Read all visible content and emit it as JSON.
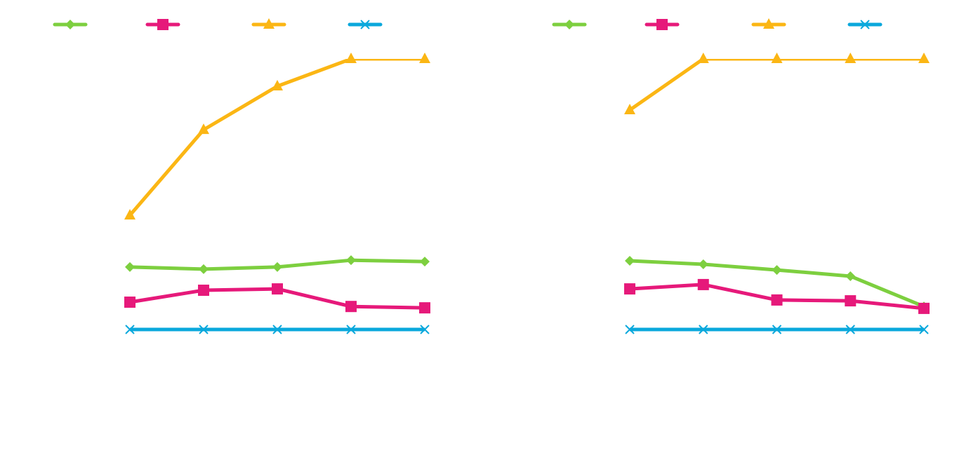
{
  "chart_data": [
    {
      "type": "line",
      "categories": [
        null,
        null,
        null,
        null,
        null
      ],
      "ylim": [
        -30,
        100
      ],
      "legend": "top",
      "series": [
        {
          "color": "#7dcf3f",
          "marker": "diamond",
          "values": [
            23.1,
            22.3,
            23.1,
            25.6,
            25.1
          ]
        },
        {
          "color": "#e6197a",
          "marker": "square",
          "values": [
            10.1,
            14.5,
            15.0,
            8.5,
            8.0
          ]
        },
        {
          "color": "#fbb614",
          "marker": "triangle",
          "values": [
            42.2,
            73.8,
            89.9,
            100,
            100
          ]
        },
        {
          "color": "#0aa8dc",
          "marker": "x",
          "values": [
            0,
            0,
            0,
            0,
            0
          ]
        }
      ]
    },
    {
      "type": "line",
      "categories": [
        null,
        null,
        null,
        null,
        null
      ],
      "ylim": [
        -30,
        100
      ],
      "legend": "top",
      "series": [
        {
          "color": "#7dcf3f",
          "marker": "diamond",
          "values": [
            25.4,
            24.1,
            22.0,
            19.7,
            8.5
          ]
        },
        {
          "color": "#e6197a",
          "marker": "square",
          "values": [
            15.0,
            16.6,
            10.9,
            10.6,
            7.8
          ]
        },
        {
          "color": "#fbb614",
          "marker": "triangle",
          "values": [
            81.1,
            100,
            100,
            100,
            100
          ]
        },
        {
          "color": "#0aa8dc",
          "marker": "x",
          "values": [
            0,
            0,
            0,
            0,
            0
          ]
        }
      ]
    }
  ]
}
